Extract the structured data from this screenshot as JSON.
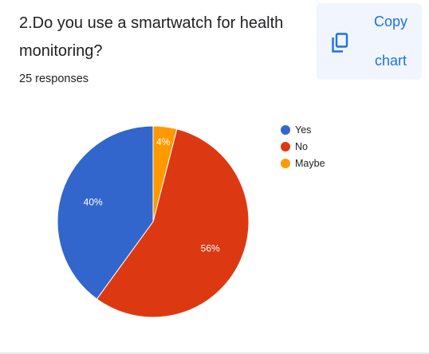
{
  "question": {
    "title": "2.Do you use a smartwatch for health monitoring?",
    "responses": "25 responses"
  },
  "copy_chart": {
    "line1": "Copy",
    "line2": "chart",
    "icon": "copy-icon"
  },
  "chart_data": {
    "type": "pie",
    "categories": [
      "Yes",
      "No",
      "Maybe"
    ],
    "values": [
      40,
      56,
      4
    ],
    "data_labels": [
      "40%",
      "56%",
      "4%"
    ],
    "colors": [
      "#3366cc",
      "#dc3912",
      "#ff9900"
    ],
    "start_angle_deg": 90,
    "legend_position": "right"
  }
}
